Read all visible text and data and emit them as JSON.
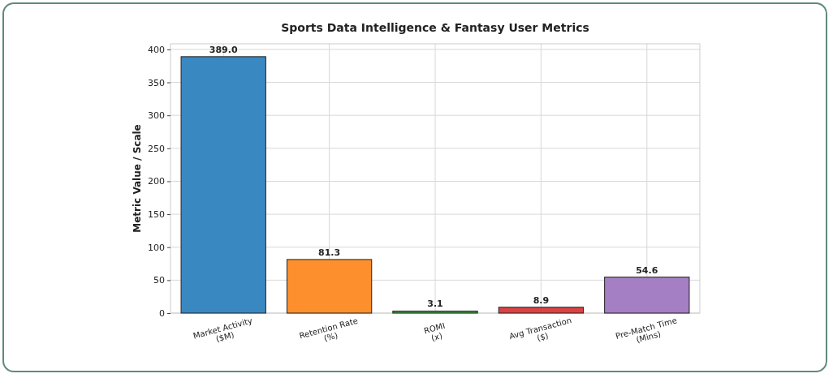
{
  "chart_data": {
    "type": "bar",
    "title": "Sports Data Intelligence & Fantasy User Metrics",
    "ylabel": "Metric Value / Scale",
    "categories": [
      "Market Activity\n($M)",
      "Retention Rate\n(%)",
      "ROMI\n(x)",
      "Avg Transaction\n($)",
      "Pre-Match Time\n(Mins)"
    ],
    "values": [
      389.0,
      81.3,
      3.1,
      8.9,
      54.6
    ],
    "colors": [
      "#3a88c2",
      "#fe8f2d",
      "#3da63d",
      "#da4244",
      "#a47fc4"
    ],
    "value_labels": [
      "389.0",
      "81.3",
      "3.1",
      "8.9",
      "54.6"
    ],
    "ylim": [
      0,
      408.5
    ],
    "yticks": [
      0,
      50,
      100,
      150,
      200,
      250,
      300,
      350,
      400
    ],
    "grid": true
  }
}
